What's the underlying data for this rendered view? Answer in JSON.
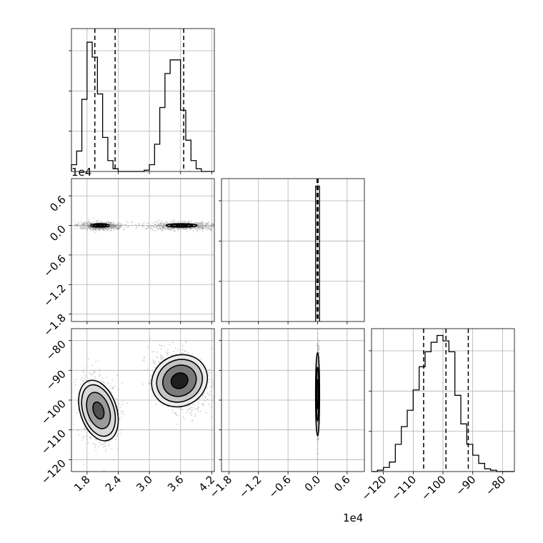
{
  "chart_data": {
    "type": "corner",
    "grid": true,
    "parameters": [
      {
        "id": "p1",
        "lim": [
          1.5,
          4.25
        ],
        "ticks": [
          1.8,
          2.4,
          3.0,
          3.6,
          4.2
        ],
        "tick_labels": [
          "1.8",
          "2.4",
          "3.0",
          "3.6",
          "4.2"
        ],
        "offset_text": "1e4"
      },
      {
        "id": "p2",
        "lim": [
          -1.95,
          0.95
        ],
        "ticks": [
          -1.8,
          -1.2,
          -0.6,
          0.0,
          0.6
        ],
        "tick_labels": [
          "−1.8",
          "−1.2",
          "−0.6",
          "0.0",
          "0.6"
        ],
        "offset_text": "1e4"
      },
      {
        "id": "p3",
        "lim": [
          -124,
          -76
        ],
        "ticks": [
          -120,
          -110,
          -100,
          -90,
          -80
        ],
        "tick_labels": [
          "−120",
          "−110",
          "−100",
          "−90",
          "−80"
        ]
      }
    ],
    "histograms": [
      {
        "param": "p1",
        "ymax": 1.05,
        "edges": [
          1.5,
          1.6,
          1.7,
          1.8,
          1.9,
          2.0,
          2.1,
          2.2,
          2.3,
          2.4,
          2.5,
          2.6,
          2.7,
          2.8,
          2.9,
          3.0,
          3.1,
          3.2,
          3.3,
          3.4,
          3.5,
          3.6,
          3.7,
          3.8,
          3.9,
          4.0,
          4.1,
          4.2,
          4.25
        ],
        "counts": [
          0.05,
          0.15,
          0.53,
          0.95,
          0.84,
          0.57,
          0.25,
          0.08,
          0.02,
          0.0,
          0.0,
          0.0,
          0.0,
          0.0,
          0.01,
          0.05,
          0.2,
          0.47,
          0.72,
          0.82,
          0.82,
          0.45,
          0.23,
          0.08,
          0.02,
          0.0,
          0.0,
          0.0
        ],
        "quantiles": [
          1.95,
          2.34,
          3.66
        ]
      },
      {
        "param": "p2",
        "ymax": 0.19,
        "edges": [
          -0.04,
          0.0,
          0.04
        ],
        "counts": [
          0.18,
          0.18
        ],
        "quantiles": [
          -0.01,
          0.0,
          0.01
        ]
      },
      {
        "param": "p3",
        "ymax": 1.05,
        "edges": [
          -124,
          -122,
          -120,
          -118,
          -116,
          -114,
          -112,
          -110,
          -108,
          -106,
          -104,
          -102,
          -100,
          -98,
          -96,
          -94,
          -92,
          -90,
          -88,
          -86,
          -84,
          -82,
          -80,
          -78,
          -76
        ],
        "counts": [
          0.0,
          0.01,
          0.03,
          0.07,
          0.2,
          0.33,
          0.45,
          0.6,
          0.77,
          0.88,
          0.95,
          1.0,
          0.96,
          0.88,
          0.56,
          0.35,
          0.2,
          0.12,
          0.06,
          0.02,
          0.01,
          0.0,
          0.0,
          0.0
        ],
        "quantiles": [
          -106.5,
          -99,
          -91.5
        ]
      }
    ],
    "pairs": [
      {
        "x": "p1",
        "y": "p2",
        "clusters": [
          {
            "cx": 2.05,
            "cy": 0.0,
            "rx": 0.18,
            "ry": 0.035,
            "rot": 0,
            "spread_x": 0.22,
            "spread_y": 0.04,
            "n": 700,
            "contours": [
              {
                "s": 0.35,
                "fill": "#303030"
              },
              {
                "s": 0.7,
                "fill": "#808080"
              },
              {
                "s": 1.0,
                "fill": "#c8c8c8"
              }
            ]
          },
          {
            "cx": 3.62,
            "cy": 0.0,
            "rx": 0.3,
            "ry": 0.035,
            "rot": 0,
            "spread_x": 0.34,
            "spread_y": 0.04,
            "n": 700,
            "contours": [
              {
                "s": 0.35,
                "fill": "#303030"
              },
              {
                "s": 0.7,
                "fill": "#808080"
              },
              {
                "s": 1.0,
                "fill": "#c8c8c8"
              }
            ]
          }
        ]
      },
      {
        "x": "p1",
        "y": "p3",
        "clusters": [
          {
            "cx": 2.02,
            "cy": -103.5,
            "rx": 0.35,
            "ry": 10.5,
            "rot": 0.35,
            "spread_x": 0.17,
            "spread_y": 5.5,
            "n": 1100,
            "contours": [
              {
                "s": 0.28,
                "fill": "#505050"
              },
              {
                "s": 0.6,
                "fill": "#9a9a9a"
              },
              {
                "s": 0.85,
                "fill": "#d8d8d8"
              },
              {
                "s": 1.0,
                "fill": "#ececec"
              }
            ]
          },
          {
            "cx": 3.58,
            "cy": -93.5,
            "rx": 0.55,
            "ry": 8.5,
            "rot": 0.55,
            "spread_x": 0.26,
            "spread_y": 4.5,
            "n": 1100,
            "contours": [
              {
                "s": 0.3,
                "fill": "#1e1e1e"
              },
              {
                "s": 0.6,
                "fill": "#7a7a7a"
              },
              {
                "s": 0.82,
                "fill": "#c4c4c4"
              },
              {
                "s": 1.0,
                "fill": "#ececec"
              }
            ]
          }
        ]
      },
      {
        "x": "p2",
        "y": "p3",
        "clusters": [
          {
            "cx": 0.0,
            "cy": -98,
            "rx": 0.04,
            "ry": 14,
            "rot": 0,
            "spread_x": 0.012,
            "spread_y": 7,
            "n": 800,
            "contours": [
              {
                "s": 0.35,
                "fill": "#303030"
              },
              {
                "s": 0.65,
                "fill": "#909090"
              },
              {
                "s": 1.0,
                "fill": "#d0d0d0"
              }
            ]
          }
        ]
      }
    ]
  }
}
